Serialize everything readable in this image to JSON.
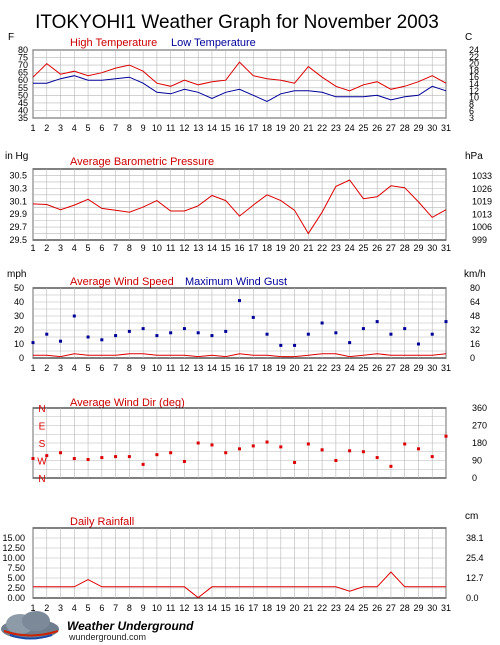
{
  "title": "ITOKYOHI1 Weather Graph for November 2003",
  "logo": {
    "brand": "Weather Underground",
    "url_text": "wunderground.com"
  },
  "colors": {
    "high": "#dd0000",
    "low": "#000099",
    "grid": "#b8b8b8",
    "title_red": "#cc0000",
    "title_blue": "#000099",
    "frame": "#000000"
  },
  "chart_data": [
    {
      "type": "line",
      "title": "",
      "legend": [
        "High Temperature",
        "Low Temperature"
      ],
      "left_unit": "F",
      "right_unit": "C",
      "x": [
        1,
        2,
        3,
        4,
        5,
        6,
        7,
        8,
        9,
        10,
        11,
        12,
        13,
        14,
        15,
        16,
        17,
        18,
        19,
        20,
        21,
        22,
        23,
        24,
        25,
        26,
        27,
        28,
        29,
        30,
        31
      ],
      "ylim": [
        35,
        80
      ],
      "left_ticks": [
        35,
        40,
        45,
        50,
        55,
        60,
        65,
        70,
        75,
        80
      ],
      "right_ticks": [
        3,
        6,
        8,
        10,
        12,
        14,
        16,
        18,
        20,
        22,
        24
      ],
      "series": [
        {
          "name": "High Temperature",
          "color": "#dd0000",
          "values": [
            62,
            71,
            64,
            66,
            63,
            65,
            68,
            70,
            66,
            58,
            56,
            60,
            57,
            59,
            60,
            72,
            63,
            61,
            60,
            58,
            69,
            62,
            56,
            53,
            57,
            59,
            54,
            56,
            59,
            63,
            58
          ]
        },
        {
          "name": "Low Temperature",
          "color": "#000099",
          "values": [
            58,
            58,
            61,
            63,
            60,
            60,
            61,
            62,
            58,
            52,
            51,
            54,
            52,
            48,
            52,
            54,
            50,
            46,
            51,
            53,
            53,
            52,
            49,
            49,
            49,
            50,
            47,
            49,
            50,
            56,
            53
          ]
        }
      ]
    },
    {
      "type": "line",
      "title": "Average Barometric Pressure",
      "left_unit": "in Hg",
      "right_unit": "hPa",
      "x": [
        1,
        2,
        3,
        4,
        5,
        6,
        7,
        8,
        9,
        10,
        11,
        12,
        13,
        14,
        15,
        16,
        17,
        18,
        19,
        20,
        21,
        22,
        23,
        24,
        25,
        26,
        27,
        28,
        29,
        30,
        31
      ],
      "ylim": [
        29.5,
        30.6
      ],
      "left_ticks": [
        "29.5",
        "29.7",
        "29.9",
        "30.1",
        "30.3",
        "30.5"
      ],
      "right_ticks": [
        "999",
        "1006",
        "1013",
        "1019",
        "1026",
        "1033"
      ],
      "series": [
        {
          "name": "Average Barometric Pressure",
          "color": "#dd0000",
          "values": [
            30.06,
            30.05,
            29.97,
            30.04,
            30.13,
            29.99,
            29.96,
            29.93,
            30.01,
            30.11,
            29.95,
            29.95,
            30.03,
            30.19,
            30.11,
            29.87,
            30.04,
            30.2,
            30.11,
            29.96,
            29.6,
            29.93,
            30.33,
            30.43,
            30.14,
            30.17,
            30.34,
            30.31,
            30.09,
            29.85,
            29.97
          ]
        }
      ]
    },
    {
      "type": "scatter",
      "title": "Average Wind Speed / Maximum Wind Gust",
      "legend": [
        "Average Wind Speed",
        "Maximum Wind Gust"
      ],
      "left_unit": "mph",
      "right_unit": "km/h",
      "x": [
        1,
        2,
        3,
        4,
        5,
        6,
        7,
        8,
        9,
        10,
        11,
        12,
        13,
        14,
        15,
        16,
        17,
        18,
        19,
        20,
        21,
        22,
        23,
        24,
        25,
        26,
        27,
        28,
        29,
        30,
        31
      ],
      "ylim": [
        0,
        50
      ],
      "left_ticks": [
        0,
        10,
        20,
        30,
        40,
        50
      ],
      "right_ticks": [
        0,
        16,
        32,
        48,
        64,
        80
      ],
      "series": [
        {
          "name": "Average Wind Speed",
          "color": "#dd0000",
          "values": [
            2,
            2,
            1,
            3,
            2,
            2,
            2,
            3,
            3,
            2,
            2,
            2,
            1,
            2,
            1,
            3,
            2,
            2,
            1,
            1,
            2,
            3,
            3,
            1,
            2,
            3,
            2,
            2,
            2,
            2,
            3
          ]
        },
        {
          "name": "Maximum Wind Gust",
          "color": "#000099",
          "values": [
            11,
            17,
            12,
            30,
            15,
            13,
            16,
            19,
            21,
            16,
            18,
            21,
            18,
            16,
            19,
            41,
            29,
            17,
            9,
            9,
            17,
            25,
            18,
            11,
            21,
            26,
            17,
            21,
            10,
            17,
            26
          ]
        }
      ]
    },
    {
      "type": "scatter",
      "title": "Average Wind Dir (deg)",
      "left_ticks": [
        "N",
        "W",
        "S",
        "E",
        "N"
      ],
      "right_ticks": [
        0,
        90,
        180,
        270,
        360
      ],
      "x": [
        1,
        2,
        3,
        4,
        5,
        6,
        7,
        8,
        9,
        10,
        11,
        12,
        13,
        14,
        15,
        16,
        17,
        18,
        19,
        20,
        21,
        22,
        23,
        24,
        25,
        26,
        27,
        28,
        29,
        30,
        31
      ],
      "ylim": [
        0,
        360
      ],
      "series": [
        {
          "name": "Average Wind Dir (deg)",
          "color": "#dd0000",
          "values": [
            100,
            115,
            130,
            100,
            95,
            105,
            110,
            110,
            70,
            120,
            130,
            85,
            180,
            170,
            130,
            150,
            165,
            185,
            160,
            80,
            175,
            145,
            90,
            140,
            135,
            105,
            60,
            175,
            150,
            110,
            215
          ]
        }
      ]
    },
    {
      "type": "line",
      "title": "Daily Rainfall",
      "left_unit": "",
      "right_unit": "cm",
      "x": [
        1,
        2,
        3,
        4,
        5,
        6,
        7,
        8,
        9,
        10,
        11,
        12,
        13,
        14,
        15,
        16,
        17,
        18,
        19,
        20,
        21,
        22,
        23,
        24,
        25,
        26,
        27,
        28,
        29,
        30,
        31
      ],
      "ylim": [
        0,
        17.5
      ],
      "left_ticks": [
        "0.00",
        "2.50",
        "5.00",
        "7.50",
        "10.00",
        "12.50",
        "15.00"
      ],
      "right_ticks": [
        "0.0",
        "12.7",
        "25.4",
        "38.1"
      ],
      "series": [
        {
          "name": "Daily Rainfall",
          "color": "#dd0000",
          "values": [
            2.8,
            2.8,
            2.8,
            2.8,
            4.6,
            2.8,
            2.8,
            2.8,
            2.8,
            2.8,
            2.8,
            2.8,
            0.1,
            2.8,
            2.8,
            2.8,
            2.8,
            2.8,
            2.8,
            2.8,
            2.8,
            2.8,
            2.8,
            1.7,
            2.8,
            2.8,
            6.5,
            2.8,
            2.8,
            2.8,
            2.8
          ]
        }
      ]
    }
  ]
}
